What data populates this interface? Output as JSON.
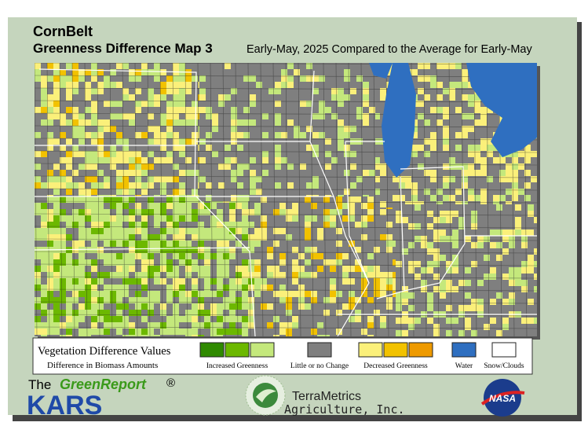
{
  "header": {
    "region": "CornBelt",
    "title": "Greenness Difference Map 3",
    "subtitle": "Early-May, 2025 Compared to the Average for Early-May"
  },
  "legend": {
    "title": "Vegetation Difference Values",
    "subtitle": "Difference in Biomass Amounts",
    "items": [
      {
        "label": "Increased Greenness",
        "colors": [
          "#2f8a00",
          "#6cb800",
          "#c4e87c"
        ]
      },
      {
        "label": "Little or no Change",
        "colors": [
          "#7f7f7f"
        ]
      },
      {
        "label": "Decreased Greenness",
        "colors": [
          "#fbf07a",
          "#f2c200",
          "#ee9a00"
        ]
      },
      {
        "label": "Water",
        "colors": [
          "#2f6fc0"
        ]
      },
      {
        "label": "Snow/Clouds",
        "colors": [
          "#ffffff"
        ]
      }
    ]
  },
  "footer": {
    "green_report": {
      "prefix": "The",
      "name": "GreenReport",
      "mark": "®"
    },
    "kars": "KARS",
    "terrametrics": {
      "name": "TerraMetrics",
      "sub": "Agriculture, Inc."
    },
    "nasa": "NASA"
  }
}
